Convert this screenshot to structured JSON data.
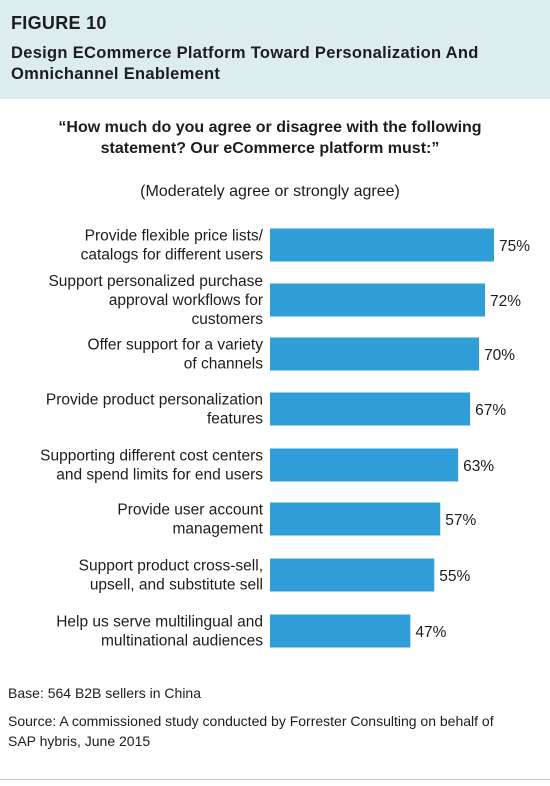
{
  "figure": {
    "number": "FIGURE 10",
    "title": "Design ECommerce Platform Toward Personalization And Omnichannel Enablement"
  },
  "chart_data": {
    "type": "bar",
    "orientation": "horizontal",
    "title": "“How much do you agree or disagree with the following statement? Our eCommerce platform must:”",
    "subtitle": "(Moderately agree or strongly agree)",
    "categories": [
      [
        "Provide flexible price lists/",
        "catalogs for different users"
      ],
      [
        "Support personalized purchase",
        "approval workflows for",
        "customers"
      ],
      [
        "Offer support for a variety",
        "of channels"
      ],
      [
        "Provide product personalization",
        "features"
      ],
      [
        "Supporting different cost centers",
        "and spend limits for end users"
      ],
      [
        "Provide user account",
        "management"
      ],
      [
        "Support product cross-sell,",
        "upsell, and substitute sell"
      ],
      [
        "Help us serve multilingual and",
        "multinational audiences"
      ]
    ],
    "values": [
      75,
      72,
      70,
      67,
      63,
      57,
      55,
      47
    ],
    "value_suffix": "%",
    "bar_color": "#2f9ed9",
    "xlim": [
      0,
      100
    ],
    "grid": false
  },
  "footnotes": {
    "base": "Base: 564 B2B sellers in China",
    "source": "Source: A commissioned study conducted by Forrester Consulting on behalf of SAP hybris, June 2015"
  }
}
